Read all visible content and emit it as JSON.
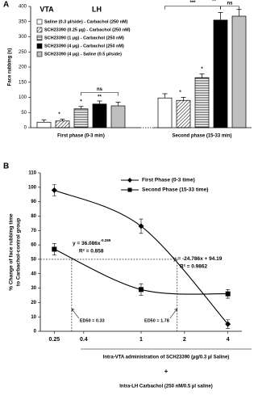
{
  "chart_data": [
    {
      "type": "bar",
      "panel": "A",
      "ylabel": "Face rubbing (s)",
      "ylim": [
        0,
        400
      ],
      "yticks": [
        0,
        50,
        100,
        150,
        200,
        250,
        300,
        350,
        400
      ],
      "categories": [
        "First phase (0-3 min)",
        "Second phase (15-33 min)"
      ],
      "region_labels": [
        "VTA",
        "LH"
      ],
      "series": [
        {
          "name": "Saline (0.3 µl/side) - Carbachol (250 nM)",
          "color": "#ffffff",
          "values": [
            18,
            98
          ],
          "errors": [
            8,
            14
          ]
        },
        {
          "name": "SCH23390 (0.25 µg) - Carbachol (250 nM)",
          "color": "#ffffff",
          "hatch": "diagonal",
          "values": [
            22,
            90
          ],
          "errors": [
            6,
            10
          ]
        },
        {
          "name": "SCH23390 (1 µg) - Carbachol (250 nM)",
          "color": "#ffffff",
          "hatch": "horizontal",
          "values": [
            62,
            165
          ],
          "errors": [
            8,
            12
          ]
        },
        {
          "name": "SCH23390 (4 µg) - Carbachol (250 nM)",
          "color": "#000000",
          "values": [
            78,
            355
          ],
          "errors": [
            10,
            25
          ]
        },
        {
          "name": "SCH23390 (4 µg) - Saline (0.5 µl/side)",
          "color": "#bfbfbf",
          "values": [
            72,
            368
          ],
          "errors": [
            12,
            22
          ]
        }
      ],
      "annotations": [
        "*",
        "*",
        "**",
        "ns",
        "*",
        "*",
        "**",
        "***",
        "ns"
      ]
    },
    {
      "type": "line",
      "panel": "B",
      "log_x": true,
      "ylabel": "% Change of face rubbing time",
      "ylabel2": "to Carbachol-control group",
      "xlabel": "Intra-VTA administration of SCH23390 (µg/0.3 µl Saline)",
      "xlabel_plus": "+",
      "xlabel2": "Intra-LH Carbachol (250 nM/0.5 µl saline)",
      "xlim": [
        0.2,
        5
      ],
      "xticks": [
        0.25,
        0.4,
        1,
        2,
        4
      ],
      "ylim": [
        0,
        110
      ],
      "yticks": [
        0,
        10,
        20,
        30,
        40,
        50,
        60,
        70,
        80,
        90,
        100,
        110
      ],
      "x": [
        0.25,
        1,
        4
      ],
      "series": [
        {
          "name": "First Phase (0-3 time)",
          "color": "#000000",
          "marker": "diamond",
          "values": [
            98,
            73,
            5
          ],
          "errors": [
            4,
            5,
            3
          ]
        },
        {
          "name": "Second Phase (15-33 time)",
          "color": "#000000",
          "marker": "square",
          "values": [
            57,
            29,
            26
          ],
          "errors": [
            4,
            4,
            3
          ]
        }
      ],
      "equations": [
        {
          "text": "y = -24.786x + 94.19",
          "r2": "R² = 0.9862"
        },
        {
          "text": "y = 36.086x",
          "sup": "-0.289",
          "r2": "R² = 0.858"
        }
      ],
      "reference_y": 50,
      "ed50": [
        {
          "value": 0.33,
          "label": "ED50 = 0.33"
        },
        {
          "value": 1.78,
          "label": "ED50 = 1.78"
        }
      ]
    }
  ]
}
